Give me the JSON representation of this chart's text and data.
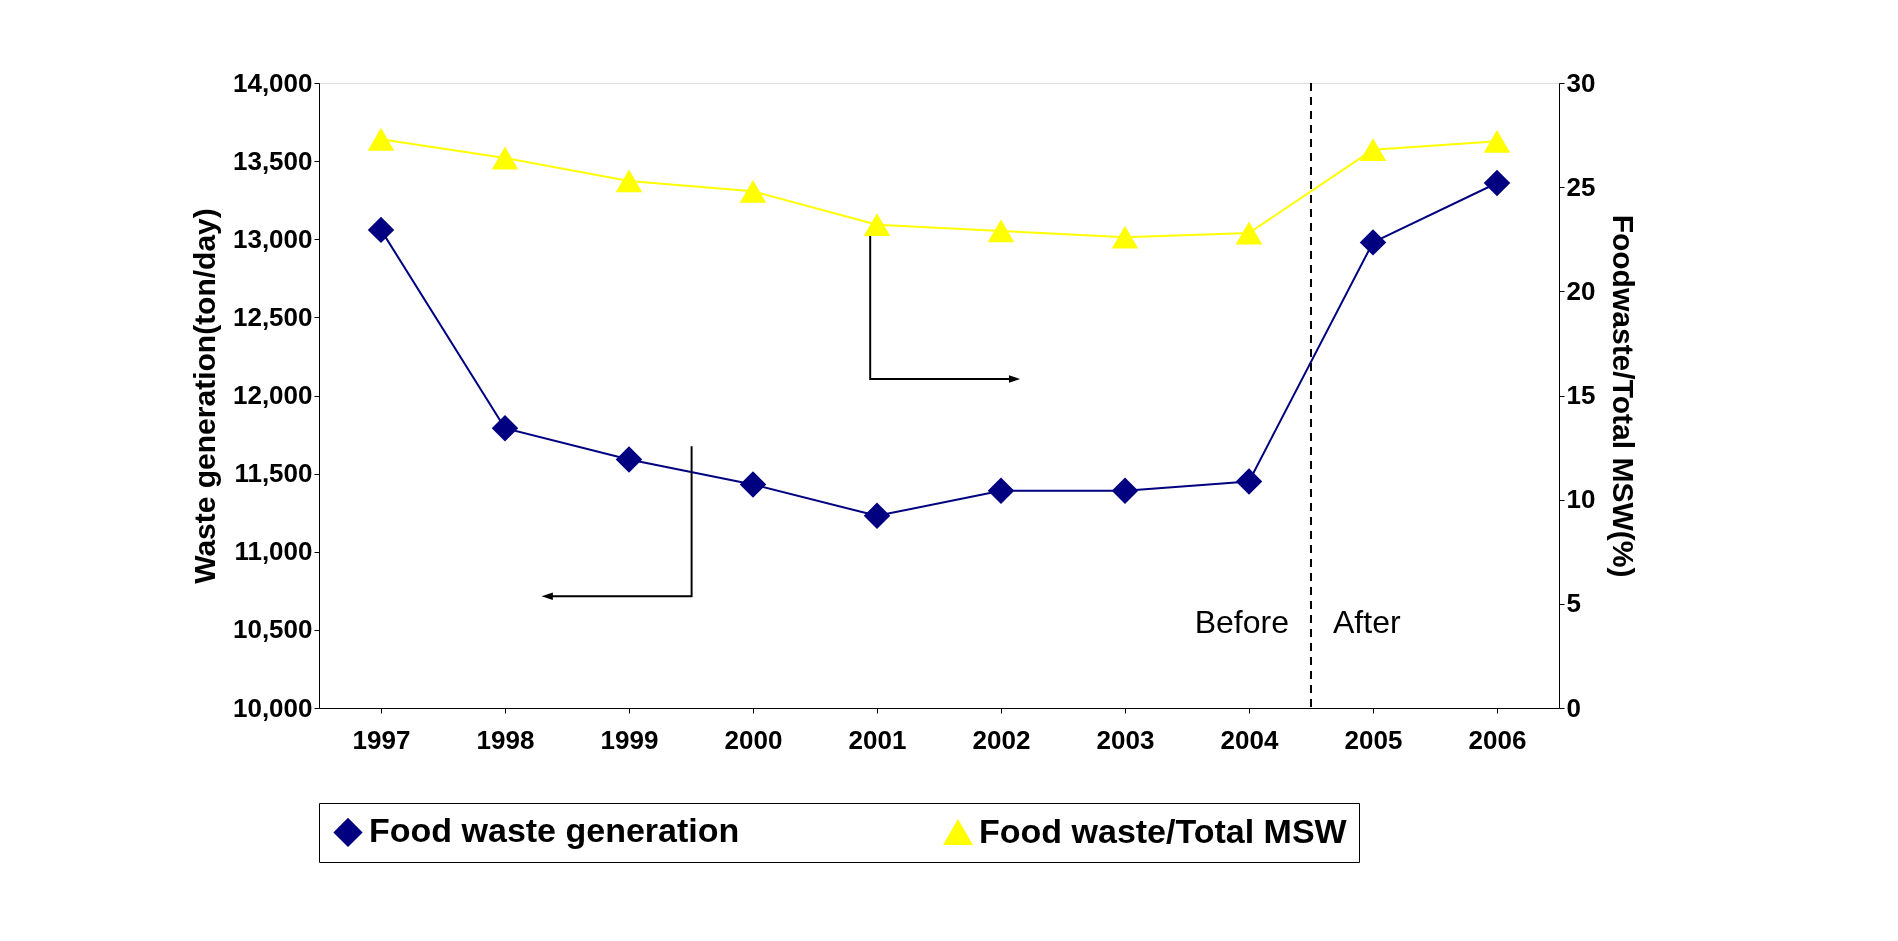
{
  "chart_data": {
    "type": "line",
    "xlabel": null,
    "ylabel": "Waste generation(ton/day)",
    "y2label": "Foodwaste/Total MSW(%)",
    "x": [
      1997,
      1998,
      1999,
      2000,
      2001,
      2002,
      2003,
      2004,
      2005,
      2006
    ],
    "xlim": [
      1996.5,
      2006.5
    ],
    "xticks": [
      1997,
      1998,
      1999,
      2000,
      2001,
      2002,
      2003,
      2004,
      2005,
      2006
    ],
    "ylim": [
      10000,
      14000
    ],
    "yticks": [
      {
        "value": 10000,
        "label": "10,000"
      },
      {
        "value": 10500,
        "label": "10,500"
      },
      {
        "value": 11000,
        "label": "11,000"
      },
      {
        "value": 11500,
        "label": "11,500"
      },
      {
        "value": 12000,
        "label": "12,000"
      },
      {
        "value": 12500,
        "label": "12,500"
      },
      {
        "value": 13000,
        "label": "13,000"
      },
      {
        "value": 13500,
        "label": "13,500"
      },
      {
        "value": 14000,
        "label": "14,000"
      }
    ],
    "y2lim": [
      0,
      30
    ],
    "y2ticks": [
      0,
      5,
      10,
      15,
      20,
      25,
      30
    ],
    "series": [
      {
        "name": "Food waste generation",
        "color": "#000080",
        "marker": "diamond",
        "values": [
          13060,
          11790,
          11590,
          11430,
          11230,
          11390,
          11390,
          11450,
          12980,
          13360
        ]
      },
      {
        "name": "Food waste/Total MSW",
        "color": "#ffff00",
        "marker": "triangle",
        "axis": "y2",
        "values": [
          27.3,
          26.4,
          25.3,
          24.8,
          23.2,
          22.9,
          22.6,
          22.8,
          26.8,
          27.2
        ]
      }
    ],
    "ref_lines": [
      {
        "axis": "x",
        "value": 2004.5,
        "color": "#000000",
        "line_style": "dashed"
      }
    ],
    "annotations": [
      "Before",
      "After"
    ],
    "grid": false,
    "legend": "bottom",
    "line_style": "solid"
  }
}
